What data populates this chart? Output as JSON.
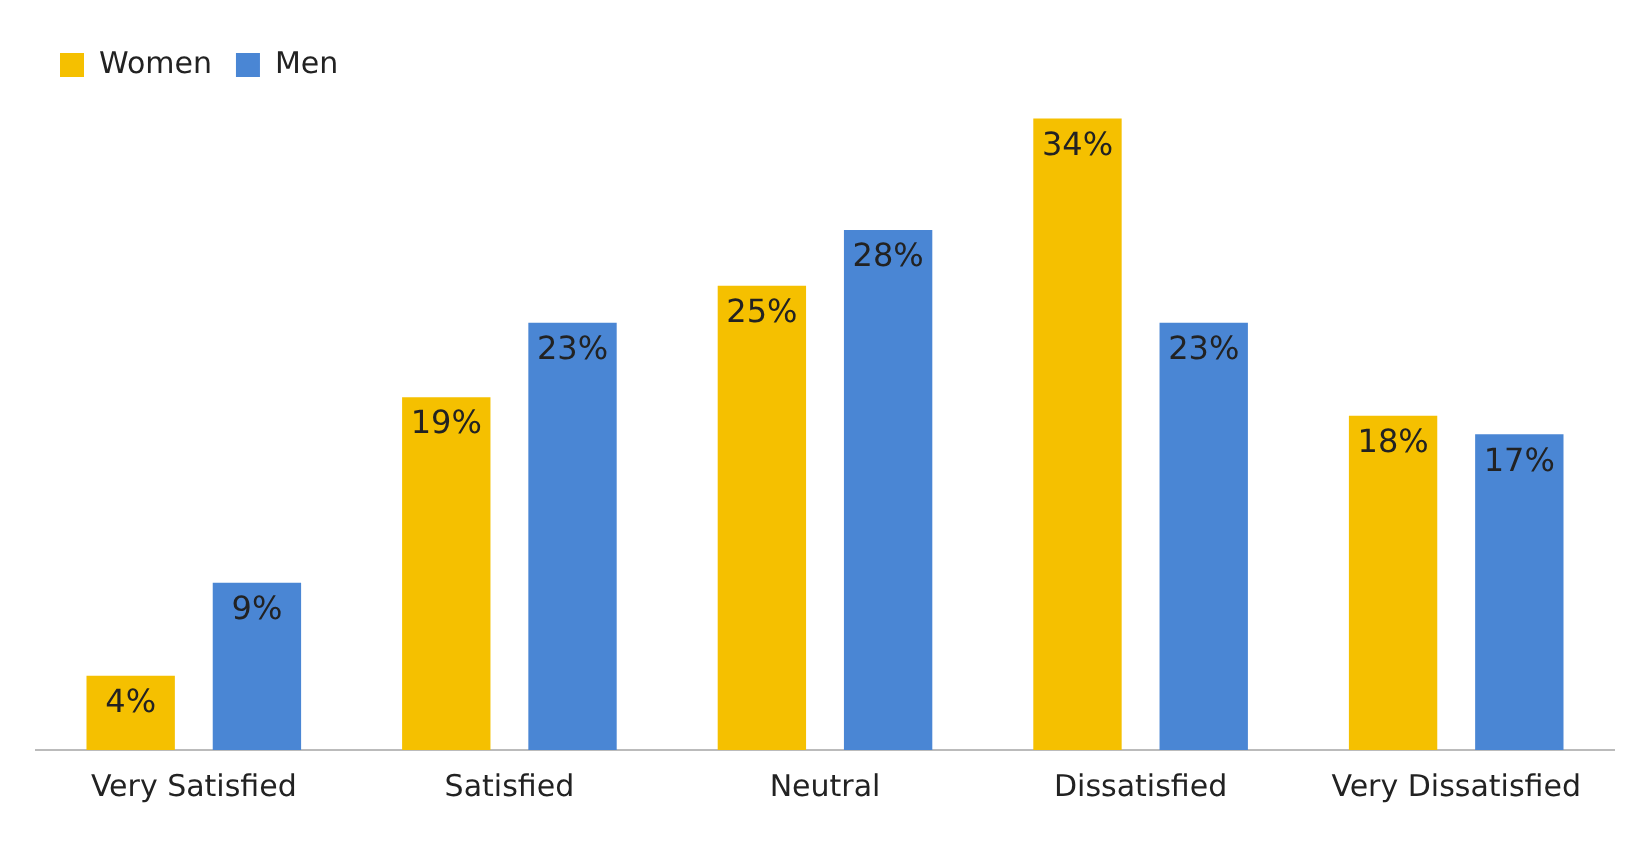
{
  "chart_data": {
    "type": "bar",
    "categories": [
      "Very Satisfied",
      "Satisfied",
      "Neutral",
      "Dissatisfied",
      "Very Dissatisfied"
    ],
    "series": [
      {
        "name": "Women",
        "color": "#f5c000",
        "values": [
          4,
          19,
          25,
          34,
          18
        ],
        "value_labels": [
          "4%",
          "19%",
          "25%",
          "34%",
          "18%"
        ]
      },
      {
        "name": "Men",
        "color": "#4a86d4",
        "values": [
          9,
          23,
          28,
          23,
          17
        ],
        "value_labels": [
          "9%",
          "23%",
          "28%",
          "23%",
          "17%"
        ]
      }
    ],
    "legend": "top left",
    "grid": false
  }
}
